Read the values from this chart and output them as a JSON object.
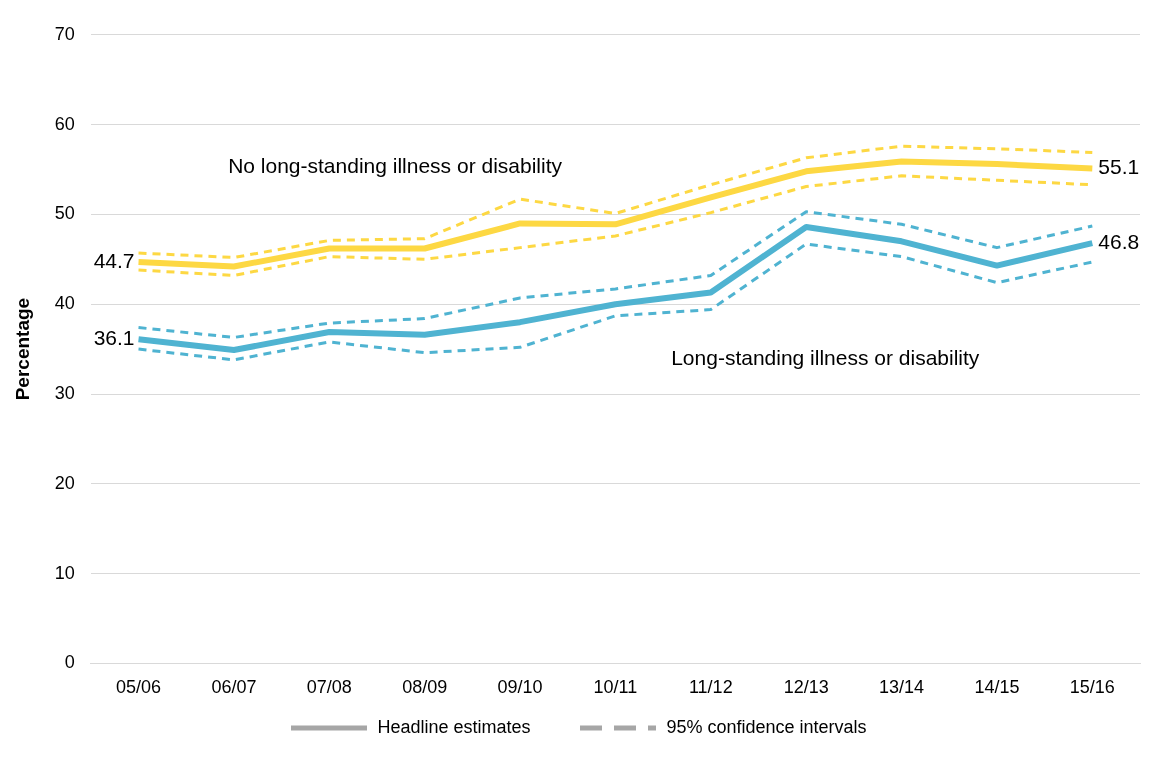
{
  "chart_data": {
    "type": "line",
    "ylabel": "Percentage",
    "categories": [
      "05/06",
      "06/07",
      "07/08",
      "08/09",
      "09/10",
      "10/11",
      "11/12",
      "12/13",
      "13/14",
      "14/15",
      "15/16"
    ],
    "ylim": [
      0,
      70
    ],
    "yticks": [
      0,
      10,
      20,
      30,
      40,
      50,
      60,
      70
    ],
    "grid": "y",
    "marker": "none",
    "series": [
      {
        "name": "No long-standing illness or disability",
        "color": "#fdd843",
        "line_style": "solid",
        "values": [
          44.7,
          44.2,
          46.2,
          46.2,
          49.0,
          48.9,
          51.9,
          54.8,
          55.9,
          55.6,
          55.1
        ],
        "value_labels": [
          "44.7",
          null,
          null,
          null,
          null,
          null,
          null,
          null,
          null,
          null,
          "55.1"
        ]
      },
      {
        "color": "#fdd843",
        "line_style": "dashed",
        "values": [
          45.7,
          45.2,
          47.1,
          47.3,
          51.7,
          50.1,
          53.3,
          56.3,
          57.6,
          57.3,
          56.9
        ]
      },
      {
        "color": "#fdd843",
        "line_style": "dashed",
        "values": [
          43.8,
          43.2,
          45.3,
          45.0,
          46.3,
          47.6,
          50.2,
          53.1,
          54.3,
          53.8,
          53.3
        ]
      },
      {
        "name": "Long-standing illness or disability",
        "color": "#4fb3d1",
        "line_style": "solid",
        "values": [
          36.1,
          34.9,
          36.9,
          36.6,
          38.0,
          40.0,
          41.3,
          48.6,
          47.0,
          44.3,
          46.8
        ],
        "value_labels": [
          "36.1",
          null,
          null,
          null,
          null,
          null,
          null,
          null,
          null,
          null,
          "46.8"
        ]
      },
      {
        "color": "#4fb3d1",
        "line_style": "dashed",
        "values": [
          37.4,
          36.3,
          37.9,
          38.4,
          40.7,
          41.7,
          43.2,
          50.3,
          48.9,
          46.3,
          48.7
        ]
      },
      {
        "color": "#4fb3d1",
        "line_style": "dashed",
        "values": [
          35.0,
          33.8,
          35.8,
          34.6,
          35.2,
          38.7,
          39.4,
          46.7,
          45.3,
          42.4,
          44.7
        ]
      }
    ],
    "annotations": [
      "Headline estimates",
      "95% confidence intervals"
    ]
  }
}
